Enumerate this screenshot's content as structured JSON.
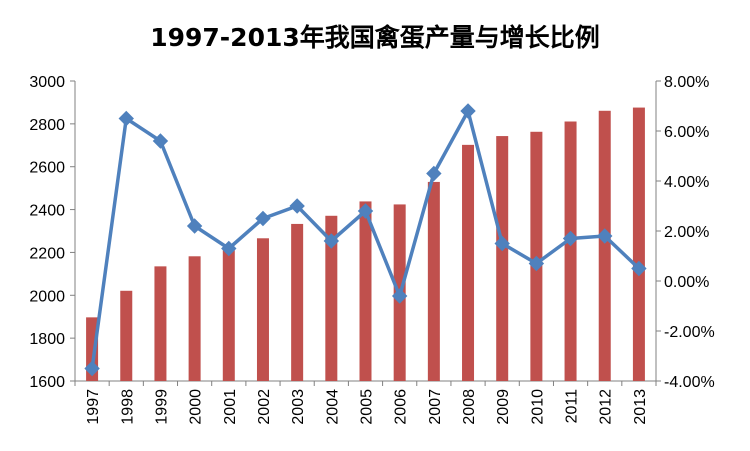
{
  "chart_data": {
    "type": "bar+line",
    "title": "1997-2013年我国禽蛋产量与增长比例",
    "categories": [
      "1997",
      "1998",
      "1999",
      "2000",
      "2001",
      "2002",
      "2003",
      "2004",
      "2005",
      "2006",
      "2007",
      "2008",
      "2009",
      "2010",
      "2011",
      "2012",
      "2013"
    ],
    "series": [
      {
        "axis": "left",
        "type": "bar",
        "color": "#c0504d",
        "values": [
          1897,
          2021,
          2135,
          2182,
          2210,
          2266,
          2333,
          2371,
          2438,
          2424,
          2529,
          2702,
          2743,
          2763,
          2811,
          2861,
          2876
        ]
      },
      {
        "axis": "right",
        "type": "line",
        "color": "#4f81bd",
        "values": [
          -3.5,
          6.5,
          5.6,
          2.2,
          1.3,
          2.5,
          3.0,
          1.6,
          2.8,
          -0.6,
          4.3,
          6.8,
          1.5,
          0.7,
          1.7,
          1.8,
          0.5
        ]
      }
    ],
    "y_left": {
      "min": 1600,
      "max": 3000,
      "step": 200,
      "ticks": [
        "1600",
        "1800",
        "2000",
        "2200",
        "2400",
        "2600",
        "2800",
        "3000"
      ]
    },
    "y_right": {
      "min": -4,
      "max": 8,
      "step": 2,
      "ticks": [
        "-4.00%",
        "-2.00%",
        "0.00%",
        "2.00%",
        "4.00%",
        "6.00%",
        "8.00%"
      ]
    },
    "grid": false,
    "legend": "none"
  }
}
